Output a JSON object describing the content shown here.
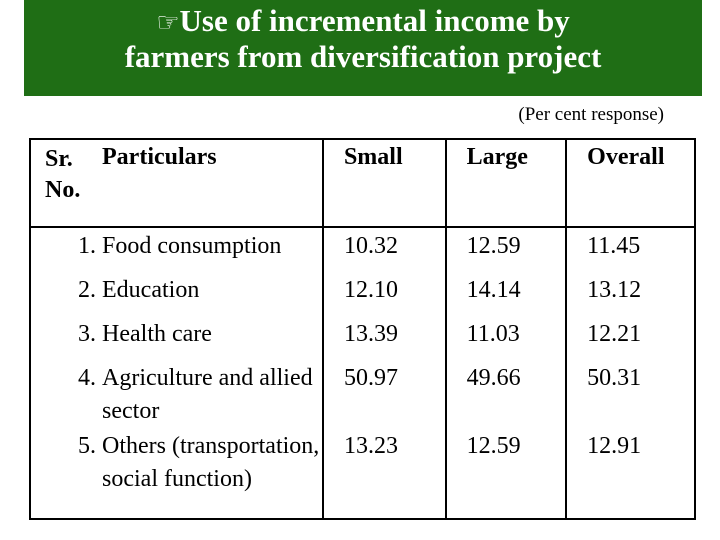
{
  "title": {
    "line1": "Use of incremental income by",
    "line2": "farmers from diversification project",
    "bullet_icon": "pointing-hand-icon"
  },
  "note": "(Per cent response)",
  "table": {
    "headers": {
      "sr": "Sr.",
      "no": "No.",
      "particulars": "Particulars",
      "small": "Small",
      "large": "Large",
      "overall": "Overall"
    },
    "rows": [
      {
        "sno": "1.",
        "particulars": "Food consumption",
        "small": "10.32",
        "large": "12.59",
        "overall": "11.45"
      },
      {
        "sno": "2.",
        "particulars": "Education",
        "small": "12.10",
        "large": "14.14",
        "overall": "13.12"
      },
      {
        "sno": "3.",
        "particulars": "Health care",
        "small": "13.39",
        "large": "11.03",
        "overall": "12.21"
      },
      {
        "sno": "4.",
        "particulars": "Agriculture and allied sector",
        "small": "50.97",
        "large": "49.66",
        "overall": "50.31"
      },
      {
        "sno": "5.",
        "particulars": "Others (transportation, social function)",
        "small": "13.23",
        "large": "12.59",
        "overall": "12.91"
      }
    ]
  }
}
